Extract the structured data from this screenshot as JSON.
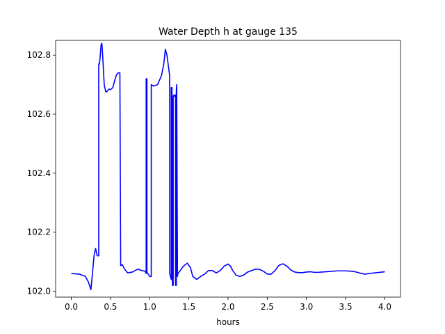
{
  "chart_data": {
    "type": "line",
    "title": "Water Depth h at gauge 135",
    "xlabel": "hours",
    "ylabel": "",
    "xlim": [
      -0.2,
      4.2
    ],
    "ylim": [
      101.98,
      102.85
    ],
    "grid": false,
    "xticks": [
      0.0,
      0.5,
      1.0,
      1.5,
      2.0,
      2.5,
      3.0,
      3.5,
      4.0
    ],
    "xtick_labels": [
      "0.0",
      "0.5",
      "1.0",
      "1.5",
      "2.0",
      "2.5",
      "3.0",
      "3.5",
      "4.0"
    ],
    "yticks": [
      102.0,
      102.2,
      102.4,
      102.6,
      102.8
    ],
    "ytick_labels": [
      "102.0",
      "102.2",
      "102.4",
      "102.6",
      "102.8"
    ],
    "series": [
      {
        "color": "#0000ff",
        "x": [
          0.0,
          0.1,
          0.18,
          0.22,
          0.25,
          0.27,
          0.29,
          0.31,
          0.33,
          0.35,
          0.35,
          0.36,
          0.37,
          0.38,
          0.39,
          0.4,
          0.42,
          0.44,
          0.46,
          0.48,
          0.5,
          0.53,
          0.56,
          0.58,
          0.6,
          0.61,
          0.62,
          0.63,
          0.63,
          0.65,
          0.68,
          0.72,
          0.78,
          0.85,
          0.9,
          0.94,
          0.955,
          0.955,
          0.965,
          0.965,
          0.98,
          1.0,
          1.02,
          1.02,
          1.05,
          1.1,
          1.15,
          1.18,
          1.2,
          1.22,
          1.24,
          1.255,
          1.255,
          1.265,
          1.275,
          1.275,
          1.285,
          1.29,
          1.29,
          1.3,
          1.3,
          1.31,
          1.32,
          1.33,
          1.33,
          1.34,
          1.34,
          1.345,
          1.355,
          1.355,
          1.36,
          1.39,
          1.43,
          1.48,
          1.52,
          1.55,
          1.6,
          1.65,
          1.7,
          1.75,
          1.8,
          1.85,
          1.9,
          1.95,
          2.0,
          2.03,
          2.06,
          2.1,
          2.15,
          2.2,
          2.25,
          2.3,
          2.35,
          2.4,
          2.45,
          2.5,
          2.55,
          2.6,
          2.65,
          2.7,
          2.75,
          2.8,
          2.85,
          2.9,
          2.95,
          3.0,
          3.05,
          3.1,
          3.15,
          3.2,
          3.3,
          3.4,
          3.5,
          3.6,
          3.65,
          3.7,
          3.75,
          3.8,
          3.9,
          4.0
        ],
        "y": [
          102.06,
          102.058,
          102.05,
          102.03,
          102.005,
          102.06,
          102.12,
          102.145,
          102.12,
          102.12,
          102.77,
          102.77,
          102.8,
          102.835,
          102.84,
          102.8,
          102.7,
          102.675,
          102.678,
          102.685,
          102.683,
          102.69,
          102.72,
          102.735,
          102.74,
          102.74,
          102.74,
          102.088,
          102.087,
          102.09,
          102.075,
          102.062,
          102.065,
          102.075,
          102.07,
          102.068,
          102.06,
          102.72,
          102.72,
          102.065,
          102.058,
          102.05,
          102.05,
          102.7,
          102.695,
          102.7,
          102.73,
          102.77,
          102.82,
          102.8,
          102.76,
          102.73,
          102.06,
          102.05,
          102.04,
          102.69,
          102.69,
          102.035,
          102.02,
          102.02,
          102.66,
          102.665,
          102.66,
          102.665,
          102.02,
          102.02,
          102.68,
          102.7,
          102.05,
          102.05,
          102.06,
          102.07,
          102.085,
          102.095,
          102.08,
          102.05,
          102.04,
          102.05,
          102.058,
          102.07,
          102.07,
          102.062,
          102.07,
          102.085,
          102.092,
          102.085,
          102.07,
          102.055,
          102.05,
          102.055,
          102.065,
          102.07,
          102.075,
          102.074,
          102.068,
          102.058,
          102.058,
          102.07,
          102.088,
          102.093,
          102.085,
          102.072,
          102.065,
          102.063,
          102.063,
          102.065,
          102.066,
          102.064,
          102.064,
          102.065,
          102.067,
          102.069,
          102.069,
          102.067,
          102.064,
          102.06,
          102.058,
          102.06,
          102.063,
          102.066
        ]
      }
    ]
  }
}
